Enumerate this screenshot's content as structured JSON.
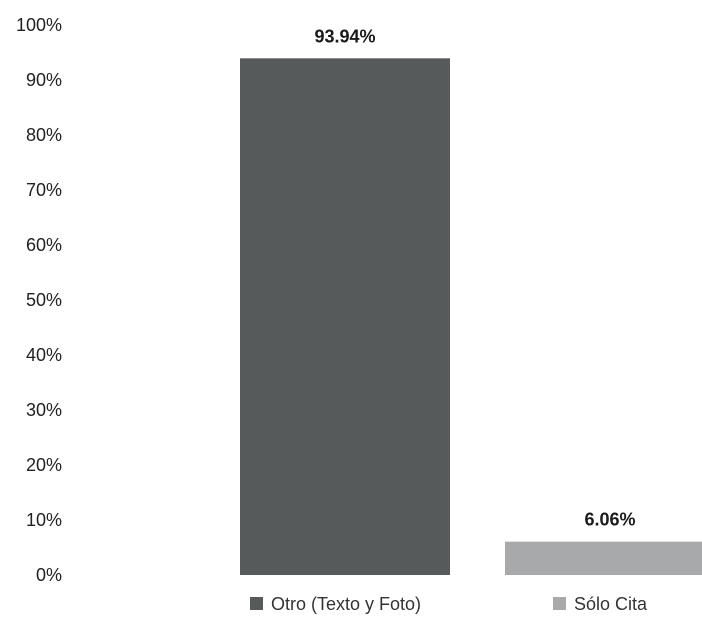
{
  "chart_data": {
    "type": "bar",
    "title": "",
    "xlabel": "",
    "ylabel": "",
    "ylim": [
      0,
      100
    ],
    "y_ticks": [
      "0%",
      "10%",
      "20%",
      "30%",
      "40%",
      "50%",
      "60%",
      "70%",
      "80%",
      "90%",
      "100%"
    ],
    "grid": false,
    "legend_position": "bottom",
    "categories": [
      "Otro (Texto y Foto)",
      "Sólo Cita"
    ],
    "values": [
      93.94,
      6.06
    ],
    "data_labels": [
      "93.94%",
      "6.06%"
    ],
    "colors": [
      "#575a5a",
      "#a7a9aa"
    ]
  }
}
